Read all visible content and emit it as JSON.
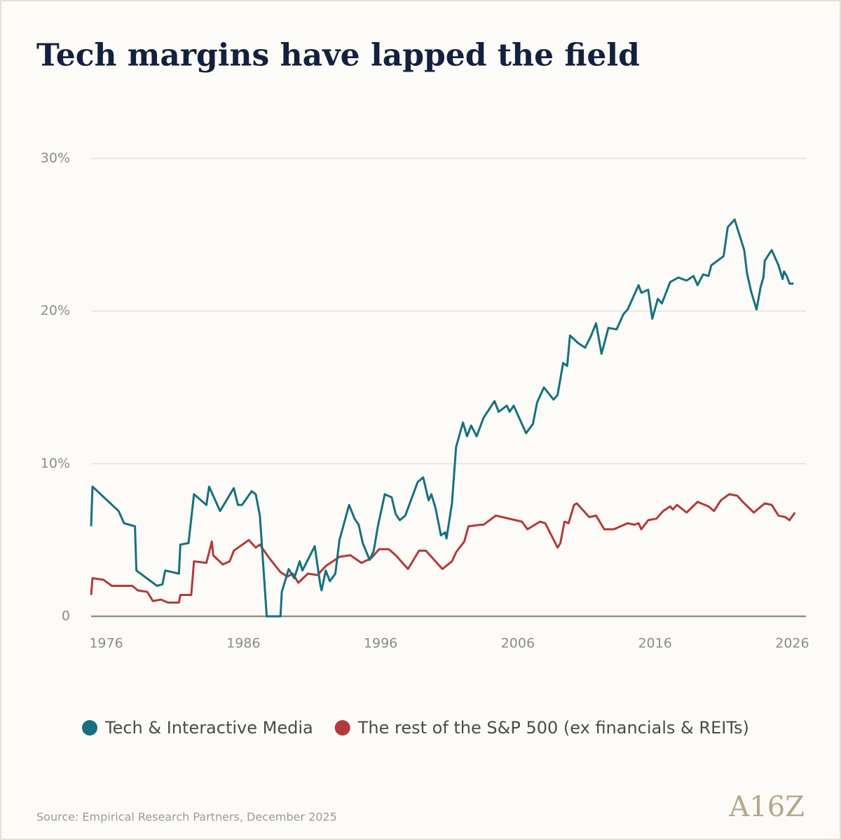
{
  "chart_data": {
    "type": "line",
    "title": "Tech margins have lapped the field",
    "source": "Source: Empirical Research Partners, December 2025",
    "logo": "A16Z",
    "xlim": [
      1974.9,
      2027
    ],
    "xticks": [
      1976,
      1986,
      1996,
      2006,
      2016,
      2026
    ],
    "ylim": [
      0,
      30
    ],
    "yticks": [
      0,
      {
        "value": 10,
        "label": "10%"
      },
      {
        "value": 20,
        "label": "20%"
      },
      {
        "value": 30,
        "label": "30%"
      }
    ],
    "grid": true,
    "legend": "bottom",
    "series": [
      {
        "name": "Tech & Interactive Media",
        "color": "#16707f",
        "x": [
          1974.9,
          1975.0,
          1976.9,
          1977.3,
          1978.1,
          1978.2,
          1979.7,
          1980.1,
          1980.3,
          1981.3,
          1981.4,
          1982.0,
          1982.4,
          1983.3,
          1983.5,
          1984.3,
          1985.3,
          1985.6,
          1985.9,
          1986.6,
          1986.9,
          1987.2,
          1987.7,
          1988.7,
          1988.8,
          1989.3,
          1989.7,
          1990.1,
          1990.3,
          1991.2,
          1991.6,
          1991.7,
          1992.0,
          1992.3,
          1992.7,
          1993.0,
          1993.7,
          1994.1,
          1994.4,
          1994.7,
          1995.2,
          1995.5,
          1995.8,
          1996.3,
          1996.8,
          1997.1,
          1997.4,
          1997.8,
          1998.7,
          1999.1,
          1999.5,
          1999.7,
          2000.0,
          2000.4,
          2000.7,
          2000.8,
          2001.2,
          2001.5,
          2002.0,
          2002.3,
          2002.6,
          2003.0,
          2003.5,
          2004.3,
          2004.6,
          2005.2,
          2005.4,
          2005.7,
          2006.6,
          2007.1,
          2007.4,
          2007.9,
          2008.6,
          2008.9,
          2009.3,
          2009.6,
          2009.8,
          2010.4,
          2010.9,
          2011.3,
          2011.7,
          2012.1,
          2012.6,
          2013.2,
          2013.7,
          2014.0,
          2014.8,
          2015.0,
          2015.5,
          2015.8,
          2016.2,
          2016.5,
          2017.1,
          2017.7,
          2018.3,
          2018.8,
          2019.1,
          2019.5,
          2019.9,
          2020.1,
          2021.0,
          2021.3,
          2021.8,
          2022.5,
          2022.7,
          2023.0,
          2023.4,
          2023.7,
          2023.9,
          2024.0,
          2024.5,
          2025.0,
          2025.3,
          2025.4,
          2025.6,
          2025.8,
          2026.1
        ],
        "values": [
          5.9,
          8.5,
          6.9,
          6.1,
          5.9,
          3.0,
          2.0,
          2.1,
          3.0,
          2.8,
          4.7,
          4.8,
          8.0,
          7.3,
          8.5,
          6.9,
          8.4,
          7.3,
          7.3,
          8.2,
          8.0,
          6.6,
          0,
          0,
          1.6,
          3.1,
          2.5,
          3.6,
          3.0,
          4.6,
          2.1,
          1.7,
          3.0,
          2.3,
          2.8,
          5.0,
          7.3,
          6.4,
          6.0,
          4.8,
          3.7,
          4.3,
          5.9,
          8.0,
          7.8,
          6.7,
          6.3,
          6.6,
          8.8,
          9.1,
          7.6,
          8.0,
          7.1,
          5.3,
          5.5,
          5.1,
          7.4,
          11.1,
          12.7,
          11.8,
          12.5,
          11.8,
          13.0,
          14.1,
          13.4,
          13.8,
          13.4,
          13.8,
          12.0,
          12.6,
          14.0,
          15.0,
          14.2,
          14.5,
          16.6,
          16.4,
          18.4,
          17.9,
          17.6,
          18.3,
          19.2,
          17.2,
          18.9,
          18.8,
          19.8,
          20.1,
          21.7,
          21.2,
          21.4,
          19.5,
          20.8,
          20.5,
          21.9,
          22.2,
          22.0,
          22.3,
          21.7,
          22.4,
          22.3,
          23.0,
          23.6,
          25.5,
          26.0,
          24.0,
          22.5,
          21.3,
          20.1,
          21.6,
          22.2,
          23.3,
          24.0,
          23.0,
          22.1,
          22.6,
          22.3,
          21.8,
          21.8
        ]
      },
      {
        "name": "The rest of the S&P 500 (ex financials & REITs)",
        "color": "#b23a3a",
        "x": [
          1974.9,
          1975.0,
          1975.8,
          1976.4,
          1977.9,
          1978.3,
          1979.0,
          1979.4,
          1980.0,
          1980.5,
          1981.3,
          1981.4,
          1982.2,
          1982.4,
          1983.3,
          1983.7,
          1983.8,
          1984.5,
          1985.0,
          1985.3,
          1986.4,
          1986.9,
          1987.2,
          1987.9,
          1988.7,
          1989.2,
          1989.6,
          1990.0,
          1990.7,
          1991.4,
          1992.0,
          1993.0,
          1993.8,
          1994.6,
          1995.3,
          1995.9,
          1996.6,
          1997.1,
          1998.0,
          1998.8,
          1999.3,
          2000.5,
          2001.2,
          2001.5,
          2002.1,
          2002.4,
          2003.3,
          2003.5,
          2004.4,
          2006.3,
          2006.7,
          2007.6,
          2008.0,
          2008.9,
          2009.1,
          2009.4,
          2009.7,
          2010.1,
          2010.3,
          2011.2,
          2011.7,
          2012.3,
          2013.0,
          2014.0,
          2014.5,
          2014.8,
          2015.0,
          2015.5,
          2016.1,
          2016.6,
          2017.1,
          2017.3,
          2017.6,
          2018.3,
          2019.1,
          2019.9,
          2020.3,
          2020.8,
          2021.4,
          2022.0,
          2022.4,
          2023.2,
          2024.0,
          2024.5,
          2025.0,
          2025.5,
          2025.8,
          2026.2
        ],
        "values": [
          1.4,
          2.5,
          2.4,
          2.0,
          2.0,
          1.7,
          1.6,
          1.0,
          1.1,
          0.9,
          0.9,
          1.4,
          1.4,
          3.6,
          3.5,
          4.9,
          4.0,
          3.4,
          3.6,
          4.3,
          5.0,
          4.5,
          4.7,
          3.8,
          2.9,
          2.6,
          2.8,
          2.2,
          2.8,
          2.7,
          3.3,
          3.9,
          4.0,
          3.5,
          3.8,
          4.4,
          4.4,
          4.0,
          3.1,
          4.3,
          4.3,
          3.1,
          3.6,
          4.2,
          4.9,
          5.9,
          6.0,
          6.0,
          6.6,
          6.2,
          5.7,
          6.2,
          6.1,
          4.5,
          4.8,
          6.2,
          6.1,
          7.3,
          7.4,
          6.5,
          6.6,
          5.7,
          5.7,
          6.1,
          6.0,
          6.1,
          5.7,
          6.3,
          6.4,
          6.9,
          7.2,
          7.0,
          7.3,
          6.8,
          7.5,
          7.2,
          6.9,
          7.6,
          8.0,
          7.9,
          7.5,
          6.8,
          7.4,
          7.3,
          6.6,
          6.5,
          6.3,
          6.8
        ]
      }
    ]
  }
}
